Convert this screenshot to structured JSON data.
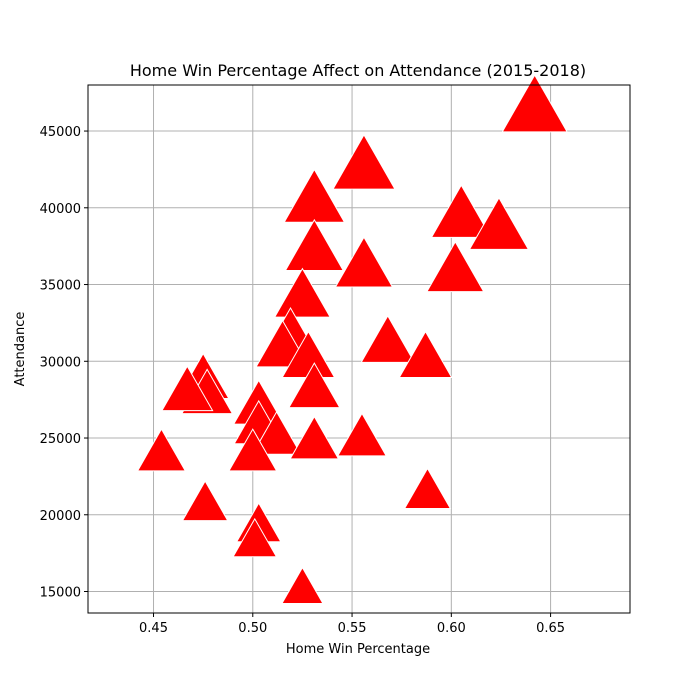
{
  "chart_data": {
    "type": "scatter",
    "title": "Home Win Percentage Affect on Attendance (2015-2018)",
    "xlabel": "Home Win Percentage",
    "ylabel": "Attendance",
    "xlim": [
      0.417,
      0.69
    ],
    "ylim": [
      13600,
      48000
    ],
    "xticks": [
      0.45,
      0.5,
      0.55,
      0.6,
      0.65
    ],
    "xtick_labels": [
      "0.45",
      "0.50",
      "0.55",
      "0.60",
      "0.65"
    ],
    "yticks": [
      15000,
      20000,
      25000,
      30000,
      35000,
      40000,
      45000
    ],
    "ytick_labels": [
      "15000",
      "20000",
      "25000",
      "30000",
      "35000",
      "40000",
      "45000"
    ],
    "grid": true,
    "marker": "triangle-up",
    "marker_color": "#ff0000",
    "points": [
      {
        "x": 0.642,
        "y": 46500
      },
      {
        "x": 0.556,
        "y": 42700
      },
      {
        "x": 0.531,
        "y": 40500
      },
      {
        "x": 0.605,
        "y": 39500
      },
      {
        "x": 0.624,
        "y": 38700
      },
      {
        "x": 0.531,
        "y": 37300
      },
      {
        "x": 0.556,
        "y": 36200
      },
      {
        "x": 0.602,
        "y": 35900
      },
      {
        "x": 0.525,
        "y": 34200
      },
      {
        "x": 0.519,
        "y": 31700
      },
      {
        "x": 0.568,
        "y": 31200
      },
      {
        "x": 0.515,
        "y": 30900
      },
      {
        "x": 0.528,
        "y": 30200
      },
      {
        "x": 0.587,
        "y": 30200
      },
      {
        "x": 0.475,
        "y": 28800
      },
      {
        "x": 0.477,
        "y": 27800
      },
      {
        "x": 0.467,
        "y": 28000
      },
      {
        "x": 0.531,
        "y": 28200
      },
      {
        "x": 0.503,
        "y": 27100
      },
      {
        "x": 0.503,
        "y": 25800
      },
      {
        "x": 0.512,
        "y": 25100
      },
      {
        "x": 0.531,
        "y": 24800
      },
      {
        "x": 0.555,
        "y": 25000
      },
      {
        "x": 0.454,
        "y": 24000
      },
      {
        "x": 0.5,
        "y": 24000
      },
      {
        "x": 0.588,
        "y": 21500
      },
      {
        "x": 0.476,
        "y": 20700
      },
      {
        "x": 0.503,
        "y": 19300
      },
      {
        "x": 0.501,
        "y": 18300
      },
      {
        "x": 0.525,
        "y": 15200
      }
    ]
  }
}
